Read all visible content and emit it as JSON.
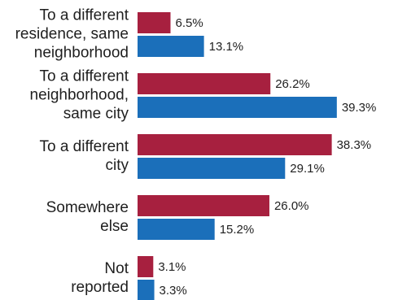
{
  "chart_data": {
    "type": "bar",
    "orientation": "horizontal",
    "categories": [
      [
        "To a different",
        "residence, same",
        "neighborhood"
      ],
      [
        "To a different",
        "neighborhood,",
        "same city"
      ],
      [
        "To a different",
        "city"
      ],
      [
        "Somewhere",
        "else"
      ],
      [
        "Not",
        "reported"
      ]
    ],
    "series": [
      {
        "color": "#a7203f",
        "values": [
          6.5,
          26.2,
          38.3,
          26.0,
          3.1
        ],
        "labels": [
          "6.5%",
          "26.2%",
          "38.3%",
          "26.0%",
          "3.1%"
        ]
      },
      {
        "color": "#1b6fba",
        "values": [
          13.1,
          39.3,
          29.1,
          15.2,
          3.3
        ],
        "labels": [
          "13.1%",
          "39.3%",
          "29.1%",
          "15.2%",
          "3.3%"
        ]
      }
    ],
    "xlim": [
      0,
      40
    ],
    "grid": false,
    "legend": "none"
  }
}
